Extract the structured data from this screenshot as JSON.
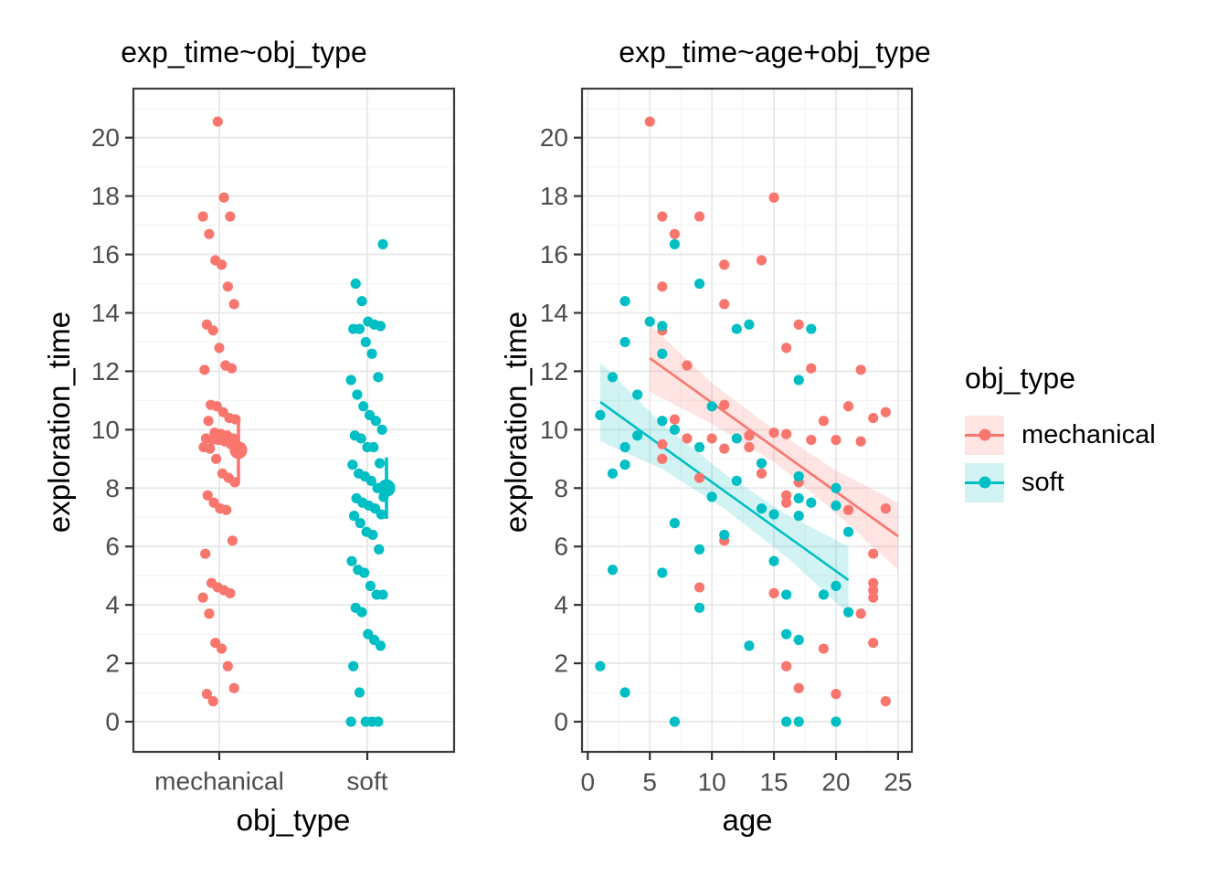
{
  "palette": {
    "mechanical": "#F8766D",
    "soft": "#00BFC4",
    "mechanical_ribbon": "rgba(248,118,109,0.20)",
    "soft_ribbon": "rgba(0,191,196,0.18)",
    "grid_major": "#E8E8E8",
    "grid_minor": "#F4F4F4",
    "axis_text": "#4D4D4D",
    "panel_border": "#3B3B3B"
  },
  "chart_data": [
    {
      "type": "scatter",
      "title": "exp_time~obj_type",
      "xlabel": "obj_type",
      "ylabel": "exploration_time",
      "categories": [
        "mechanical",
        "soft"
      ],
      "yticks": [
        0,
        2,
        4,
        6,
        8,
        10,
        12,
        14,
        16,
        18,
        20
      ],
      "ylim": [
        0,
        20.6
      ],
      "jitter": "horizontal",
      "series": [
        {
          "name": "mechanical",
          "color": "#F8766D",
          "values": [
            20.55,
            17.95,
            17.3,
            17.3,
            16.7,
            15.8,
            15.65,
            14.9,
            14.3,
            13.6,
            13.4,
            12.8,
            12.2,
            12.1,
            12.05,
            10.85,
            10.8,
            10.6,
            10.4,
            10.35,
            10.3,
            9.9,
            9.85,
            9.8,
            9.7,
            9.7,
            9.65,
            9.65,
            9.6,
            9.5,
            9.4,
            9.35,
            9.0,
            8.5,
            8.35,
            8.2,
            7.75,
            7.5,
            7.3,
            7.25,
            6.2,
            5.75,
            4.75,
            4.6,
            4.5,
            4.4,
            4.25,
            3.7,
            2.7,
            2.5,
            1.9,
            1.15,
            0.95,
            0.7
          ]
        },
        {
          "name": "soft",
          "color": "#00BFC4",
          "values": [
            16.35,
            15.0,
            14.4,
            13.7,
            13.6,
            13.55,
            13.45,
            13.45,
            13.0,
            12.6,
            11.8,
            11.7,
            11.2,
            10.8,
            10.5,
            10.3,
            10.0,
            9.8,
            9.7,
            9.4,
            9.4,
            8.85,
            8.8,
            8.5,
            8.4,
            8.25,
            8.0,
            7.7,
            7.65,
            7.5,
            7.4,
            7.3,
            7.1,
            7.05,
            6.8,
            6.5,
            6.4,
            5.9,
            5.5,
            5.2,
            5.1,
            4.65,
            4.35,
            4.35,
            3.9,
            3.75,
            3.0,
            2.8,
            2.6,
            1.9,
            1.0,
            0.0,
            0.0,
            0.0,
            0.0
          ]
        }
      ],
      "means": [
        {
          "name": "mechanical",
          "mean": 9.3,
          "ci_low": 8.15,
          "ci_high": 10.45
        },
        {
          "name": "soft",
          "mean": 8.0,
          "ci_low": 6.95,
          "ci_high": 9.05
        }
      ]
    },
    {
      "type": "scatter",
      "title": "exp_time~age+obj_type",
      "xlabel": "age",
      "ylabel": "exploration_time",
      "xticks": [
        0,
        5,
        10,
        15,
        20,
        25
      ],
      "yticks": [
        0,
        2,
        4,
        6,
        8,
        10,
        12,
        14,
        16,
        18,
        20
      ],
      "xlim": [
        0,
        25
      ],
      "ylim": [
        0,
        20.6
      ],
      "series": [
        {
          "name": "mechanical",
          "color": "#F8766D",
          "points": [
            [
              5,
              20.55
            ],
            [
              15,
              17.95
            ],
            [
              6,
              17.3
            ],
            [
              9,
              17.3
            ],
            [
              7,
              16.7
            ],
            [
              14,
              15.8
            ],
            [
              11,
              15.65
            ],
            [
              6,
              14.9
            ],
            [
              11,
              14.3
            ],
            [
              17,
              13.6
            ],
            [
              6,
              13.4
            ],
            [
              16,
              12.8
            ],
            [
              8,
              12.2
            ],
            [
              18,
              12.1
            ],
            [
              22,
              12.05
            ],
            [
              11,
              10.85
            ],
            [
              21,
              10.8
            ],
            [
              24,
              10.6
            ],
            [
              23,
              10.4
            ],
            [
              7,
              10.35
            ],
            [
              19,
              10.3
            ],
            [
              15,
              9.9
            ],
            [
              16,
              9.85
            ],
            [
              13,
              9.8
            ],
            [
              8,
              9.7
            ],
            [
              10,
              9.7
            ],
            [
              18,
              9.65
            ],
            [
              20,
              9.65
            ],
            [
              22,
              9.6
            ],
            [
              6,
              9.5
            ],
            [
              13,
              9.4
            ],
            [
              11,
              9.35
            ],
            [
              6,
              9.0
            ],
            [
              14,
              8.5
            ],
            [
              9,
              8.35
            ],
            [
              17,
              8.2
            ],
            [
              16,
              7.75
            ],
            [
              16,
              7.5
            ],
            [
              24,
              7.3
            ],
            [
              21,
              7.25
            ],
            [
              11,
              6.2
            ],
            [
              23,
              5.75
            ],
            [
              23,
              4.75
            ],
            [
              9,
              4.6
            ],
            [
              23,
              4.5
            ],
            [
              15,
              4.4
            ],
            [
              23,
              4.25
            ],
            [
              22,
              3.7
            ],
            [
              23,
              2.7
            ],
            [
              19,
              2.5
            ],
            [
              16,
              1.9
            ],
            [
              17,
              1.15
            ],
            [
              20,
              0.95
            ],
            [
              24,
              0.7
            ]
          ],
          "fit": {
            "x": [
              5,
              25
            ],
            "y": [
              12.45,
              6.35
            ]
          },
          "ribbon": [
            [
              5,
              13.6,
              11.3
            ],
            [
              10,
              11.6,
              10.2
            ],
            [
              15,
              10.0,
              8.9
            ],
            [
              20,
              8.6,
              7.15
            ],
            [
              25,
              7.5,
              5.2
            ]
          ]
        },
        {
          "name": "soft",
          "color": "#00BFC4",
          "points": [
            [
              7,
              16.35
            ],
            [
              9,
              15.0
            ],
            [
              3,
              14.4
            ],
            [
              5,
              13.7
            ],
            [
              13,
              13.6
            ],
            [
              6,
              13.55
            ],
            [
              12,
              13.45
            ],
            [
              18,
              13.45
            ],
            [
              3,
              13.0
            ],
            [
              6,
              12.6
            ],
            [
              2,
              11.8
            ],
            [
              17,
              11.7
            ],
            [
              4,
              11.2
            ],
            [
              10,
              10.8
            ],
            [
              1,
              10.5
            ],
            [
              6,
              10.3
            ],
            [
              7,
              10.0
            ],
            [
              4,
              9.8
            ],
            [
              12,
              9.7
            ],
            [
              3,
              9.4
            ],
            [
              9,
              9.4
            ],
            [
              14,
              8.85
            ],
            [
              3,
              8.8
            ],
            [
              2,
              8.5
            ],
            [
              17,
              8.4
            ],
            [
              12,
              8.25
            ],
            [
              20,
              8.0
            ],
            [
              10,
              7.7
            ],
            [
              17,
              7.65
            ],
            [
              18,
              7.5
            ],
            [
              20,
              7.4
            ],
            [
              14,
              7.3
            ],
            [
              15,
              7.1
            ],
            [
              17,
              7.05
            ],
            [
              7,
              6.8
            ],
            [
              21,
              6.5
            ],
            [
              11,
              6.4
            ],
            [
              9,
              5.9
            ],
            [
              15,
              5.5
            ],
            [
              2,
              5.2
            ],
            [
              6,
              5.1
            ],
            [
              20,
              4.65
            ],
            [
              16,
              4.35
            ],
            [
              19,
              4.35
            ],
            [
              9,
              3.9
            ],
            [
              21,
              3.75
            ],
            [
              16,
              3.0
            ],
            [
              17,
              2.8
            ],
            [
              13,
              2.6
            ],
            [
              1,
              1.9
            ],
            [
              3,
              1.0
            ],
            [
              7,
              0.0
            ],
            [
              16,
              0.0
            ],
            [
              17,
              0.0
            ],
            [
              20,
              0.0
            ]
          ],
          "fit": {
            "x": [
              1,
              21
            ],
            "y": [
              10.95,
              4.85
            ]
          },
          "ribbon": [
            [
              1,
              12.3,
              9.6
            ],
            [
              6,
              10.2,
              8.65
            ],
            [
              11,
              8.5,
              7.3
            ],
            [
              16,
              7.1,
              5.65
            ],
            [
              21,
              6.0,
              3.7
            ]
          ]
        }
      ],
      "legend": {
        "title": "obj_type",
        "entries": [
          "mechanical",
          "soft"
        ]
      }
    }
  ]
}
